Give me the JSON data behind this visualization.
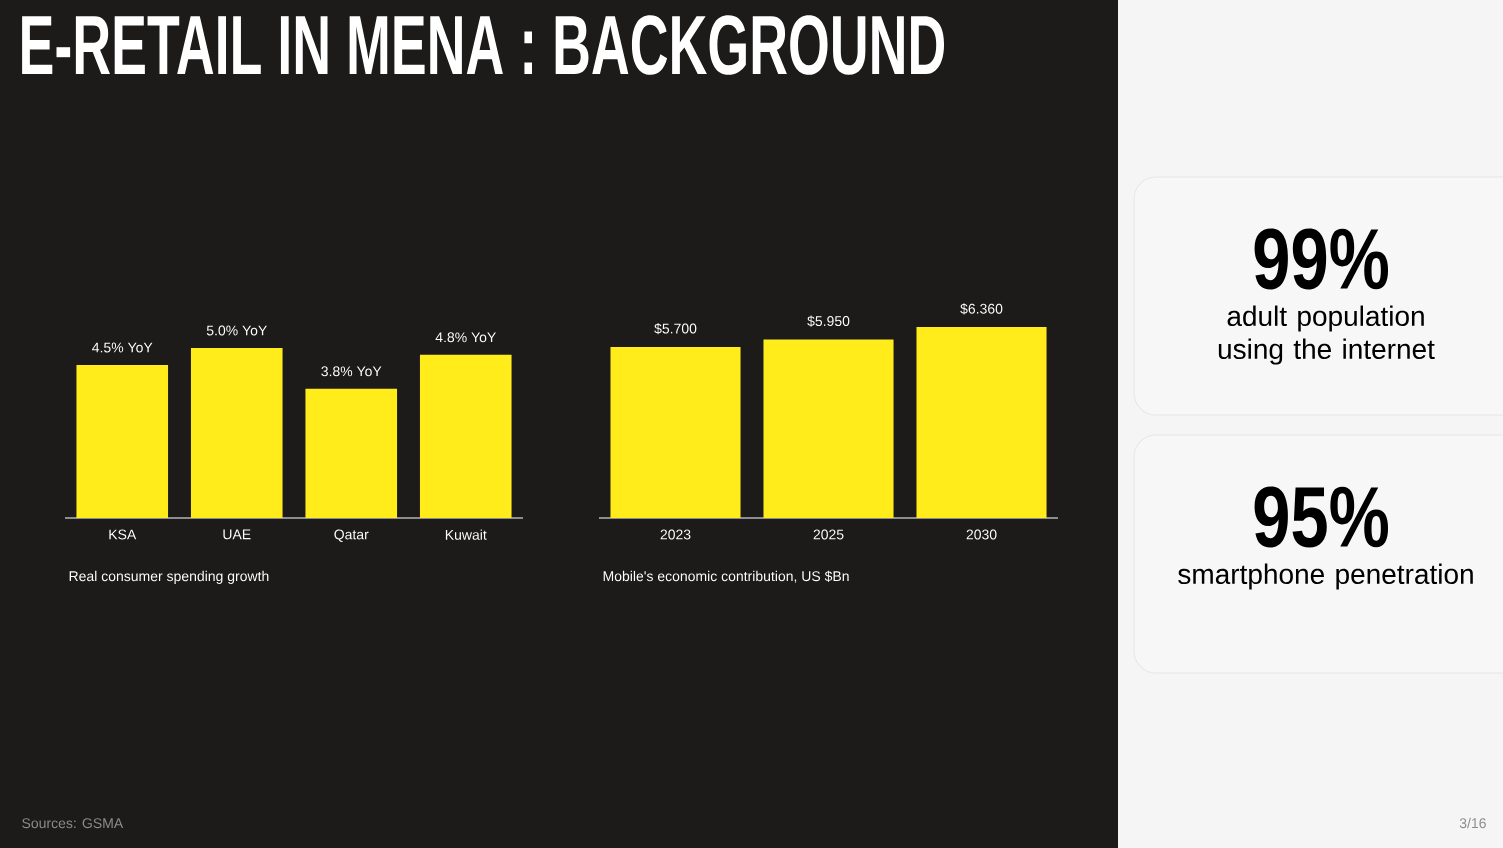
{
  "chart_data": [
    {
      "type": "bar",
      "title": "E-RETAIL IN MENA : BACKGROUND",
      "xlabel": "Real consumer spending growth",
      "categories": [
        "KSA",
        "UAE",
        "Qatar",
        "Kuwait"
      ],
      "values": [
        4.5,
        5.0,
        3.8,
        4.8
      ],
      "value_labels": [
        "4.5% YoY",
        "5.0% YoY",
        "3.8% YoY",
        "4.8% YoY"
      ],
      "color": "#ffec1a",
      "tick_labels": "x",
      "annotations": [
        "Sources: GSMA",
        "3/16"
      ]
    },
    {
      "type": "bar",
      "xlabel": "Mobile's economic contribution, US $Bn",
      "categories": [
        "2023",
        "2025",
        "2030"
      ],
      "values": [
        5.7,
        5.95,
        6.36
      ],
      "value_labels": [
        "$5.700",
        "$5.950",
        "$6.360"
      ],
      "color": "#ffec1a",
      "tick_labels": "x"
    },
    {
      "type": "other",
      "annotations": [
        "99%",
        "adult population using the internet",
        "95%",
        "smartphone penetration"
      ]
    }
  ]
}
